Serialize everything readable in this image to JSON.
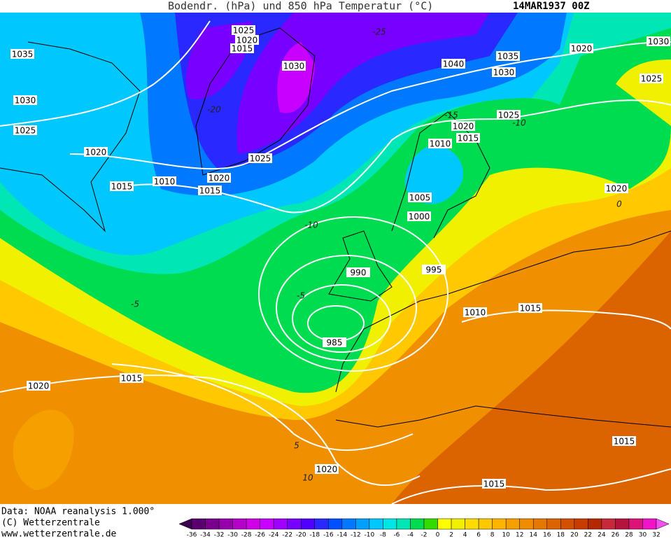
{
  "header": {
    "title": "Bodendr. (hPa) und 850 hPa Temperatur (°C)",
    "date": "14MAR1937 00Z"
  },
  "isobar_labels": [
    "1035",
    "1030",
    "1025",
    "1020",
    "1015",
    "1010",
    "1015",
    "1020",
    "1025",
    "1025",
    "1020",
    "1015",
    "1030",
    "1040",
    "1035",
    "1030",
    "1020",
    "1030",
    "1025",
    "1025",
    "1020",
    "1015",
    "1010",
    "1005",
    "1000",
    "990",
    "995",
    "985",
    "1010",
    "1015",
    "1020",
    "1015",
    "1020",
    "1020",
    "1015",
    "1015"
  ],
  "temperature_labels": [
    "-25",
    "-20",
    "-15",
    "-10",
    "-10",
    "-5",
    "-5",
    "0",
    "5",
    "10"
  ],
  "footer": {
    "data": "Data: NOAA reanalysis 1.000°",
    "copyright": "(C) Wetterzentrale",
    "url": "www.wetterzentrale.de"
  },
  "colorbar": {
    "ticks": [
      -36,
      -34,
      -32,
      -30,
      -28,
      -26,
      -24,
      -22,
      -20,
      -18,
      -16,
      -14,
      -12,
      -10,
      -8,
      -6,
      -4,
      -2,
      0,
      2,
      4,
      6,
      8,
      10,
      12,
      14,
      16,
      18,
      20,
      22,
      24,
      26,
      28,
      30,
      32
    ],
    "colors": [
      "#3c0050",
      "#5a006e",
      "#78008c",
      "#9600aa",
      "#b400c8",
      "#d200e6",
      "#c800ff",
      "#a000ff",
      "#7800ff",
      "#5000ff",
      "#2828ff",
      "#0050ff",
      "#0078ff",
      "#00a0ff",
      "#00c8ff",
      "#00e6e6",
      "#00e6b4",
      "#00dc50",
      "#32dc00",
      "#ffff00",
      "#f0f000",
      "#ffdc00",
      "#ffc800",
      "#ffb400",
      "#f5a000",
      "#f08c00",
      "#e67800",
      "#dc6400",
      "#d25000",
      "#c83c00",
      "#b42800",
      "#c8283c",
      "#b4143c",
      "#dc1478",
      "#f014c8",
      "#f050f0"
    ]
  }
}
